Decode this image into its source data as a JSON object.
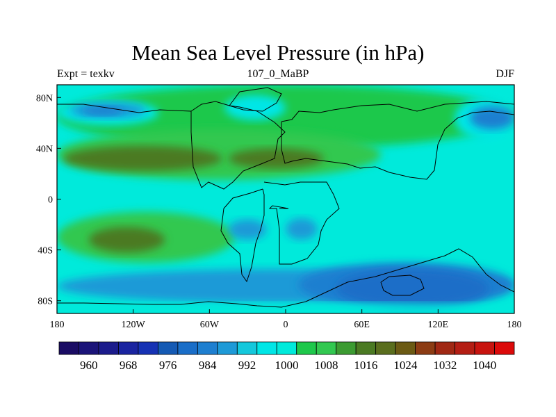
{
  "chart_data": {
    "type": "heatmap",
    "title": "Mean Sea Level Pressure (in hPa)",
    "subtitle_left": "Expt = texkv",
    "subtitle_center": "107_0_MaBP",
    "subtitle_right": "DJF",
    "x_ticks": [
      {
        "value": -180,
        "label": "180"
      },
      {
        "value": -120,
        "label": "120W"
      },
      {
        "value": -60,
        "label": "60W"
      },
      {
        "value": 0,
        "label": "0"
      },
      {
        "value": 60,
        "label": "60E"
      },
      {
        "value": 120,
        "label": "120E"
      },
      {
        "value": 180,
        "label": "180"
      }
    ],
    "y_ticks": [
      {
        "value": 80,
        "label": "80N"
      },
      {
        "value": 40,
        "label": "40N"
      },
      {
        "value": 0,
        "label": "0"
      },
      {
        "value": -40,
        "label": "40S"
      },
      {
        "value": -80,
        "label": "80S"
      }
    ],
    "xlim": [
      -180,
      180
    ],
    "ylim": [
      -90,
      90
    ],
    "background_level": 1000,
    "colorbar": {
      "levels": [
        956,
        960,
        964,
        968,
        972,
        976,
        980,
        984,
        988,
        992,
        996,
        1000,
        1004,
        1008,
        1012,
        1016,
        1020,
        1024,
        1028,
        1032,
        1036,
        1040,
        1044
      ],
      "colors": [
        "#1a0c64",
        "#1b1479",
        "#1c1c8c",
        "#1a24a0",
        "#1632b4",
        "#155ab4",
        "#1a6ec8",
        "#1e7fd0",
        "#1e9ad7",
        "#14c8dc",
        "#00e6e6",
        "#00eadb",
        "#1ec84b",
        "#32c850",
        "#3c9b32",
        "#4b7a23",
        "#5a6e1e",
        "#6b5a14",
        "#8c3c14",
        "#a02814",
        "#b41e14",
        "#c8140f",
        "#dc0a0a"
      ],
      "labels": [
        "960",
        "968",
        "976",
        "984",
        "992",
        "1000",
        "1008",
        "1016",
        "1024",
        "1032",
        "1040"
      ]
    },
    "regions": [
      {
        "name": "northern-green-band",
        "level": 1004,
        "lon": [
          -180,
          180
        ],
        "lat": [
          40,
          90
        ]
      },
      {
        "name": "northern-midlat-green",
        "level": 1008,
        "lon": [
          -180,
          75
        ],
        "lat": [
          15,
          55
        ]
      },
      {
        "name": "north-pacific-low-outer",
        "level": 996,
        "lon": [
          -180,
          -100
        ],
        "lat": [
          58,
          78
        ]
      },
      {
        "name": "north-pacific-low-mid",
        "level": 988,
        "lon": [
          -170,
          -110
        ],
        "lat": [
          64,
          76
        ]
      },
      {
        "name": "north-pacific-low-core",
        "level": 984,
        "lon": [
          -160,
          -128
        ],
        "lat": [
          66,
          73
        ]
      },
      {
        "name": "north-atlantic-low-outer",
        "level": 996,
        "lon": [
          -48,
          0
        ],
        "lat": [
          62,
          82
        ]
      },
      {
        "name": "ne-pacific-low-outer",
        "level": 996,
        "lon": [
          133,
          180
        ],
        "lat": [
          47,
          80
        ]
      },
      {
        "name": "ne-pacific-low-core",
        "level": 984,
        "lon": [
          145,
          180
        ],
        "lat": [
          55,
          73
        ]
      },
      {
        "name": "subtropical-high-west",
        "level": 1016,
        "lon": [
          -175,
          -50
        ],
        "lat": [
          22,
          42
        ]
      },
      {
        "name": "subtropical-high-east",
        "level": 1016,
        "lon": [
          -45,
          30
        ],
        "lat": [
          24,
          40
        ]
      },
      {
        "name": "south-hemisphere-green",
        "level": 1008,
        "lon": [
          -180,
          -40
        ],
        "lat": [
          -50,
          -10
        ]
      },
      {
        "name": "south-pacific-high",
        "level": 1016,
        "lon": [
          -155,
          -95
        ],
        "lat": [
          -42,
          -22
        ]
      },
      {
        "name": "south-america-low",
        "level": 988,
        "lon": [
          -45,
          -15
        ],
        "lat": [
          -32,
          -16
        ]
      },
      {
        "name": "africa-low",
        "level": 988,
        "lon": [
          0,
          25
        ],
        "lat": [
          -32,
          -15
        ]
      },
      {
        "name": "southern-ocean-ring",
        "level": 988,
        "lon": [
          -180,
          180
        ],
        "lat": [
          -82,
          -55
        ]
      },
      {
        "name": "southern-low-mid",
        "level": 984,
        "lon": [
          10,
          180
        ],
        "lat": [
          -85,
          -50
        ]
      },
      {
        "name": "southern-low-core",
        "level": 980,
        "lon": [
          40,
          160
        ],
        "lat": [
          -85,
          -55
        ]
      },
      {
        "name": "antarctic-rim",
        "level": 1000,
        "lon": [
          -180,
          180
        ],
        "lat": [
          -90,
          -82
        ]
      }
    ]
  }
}
